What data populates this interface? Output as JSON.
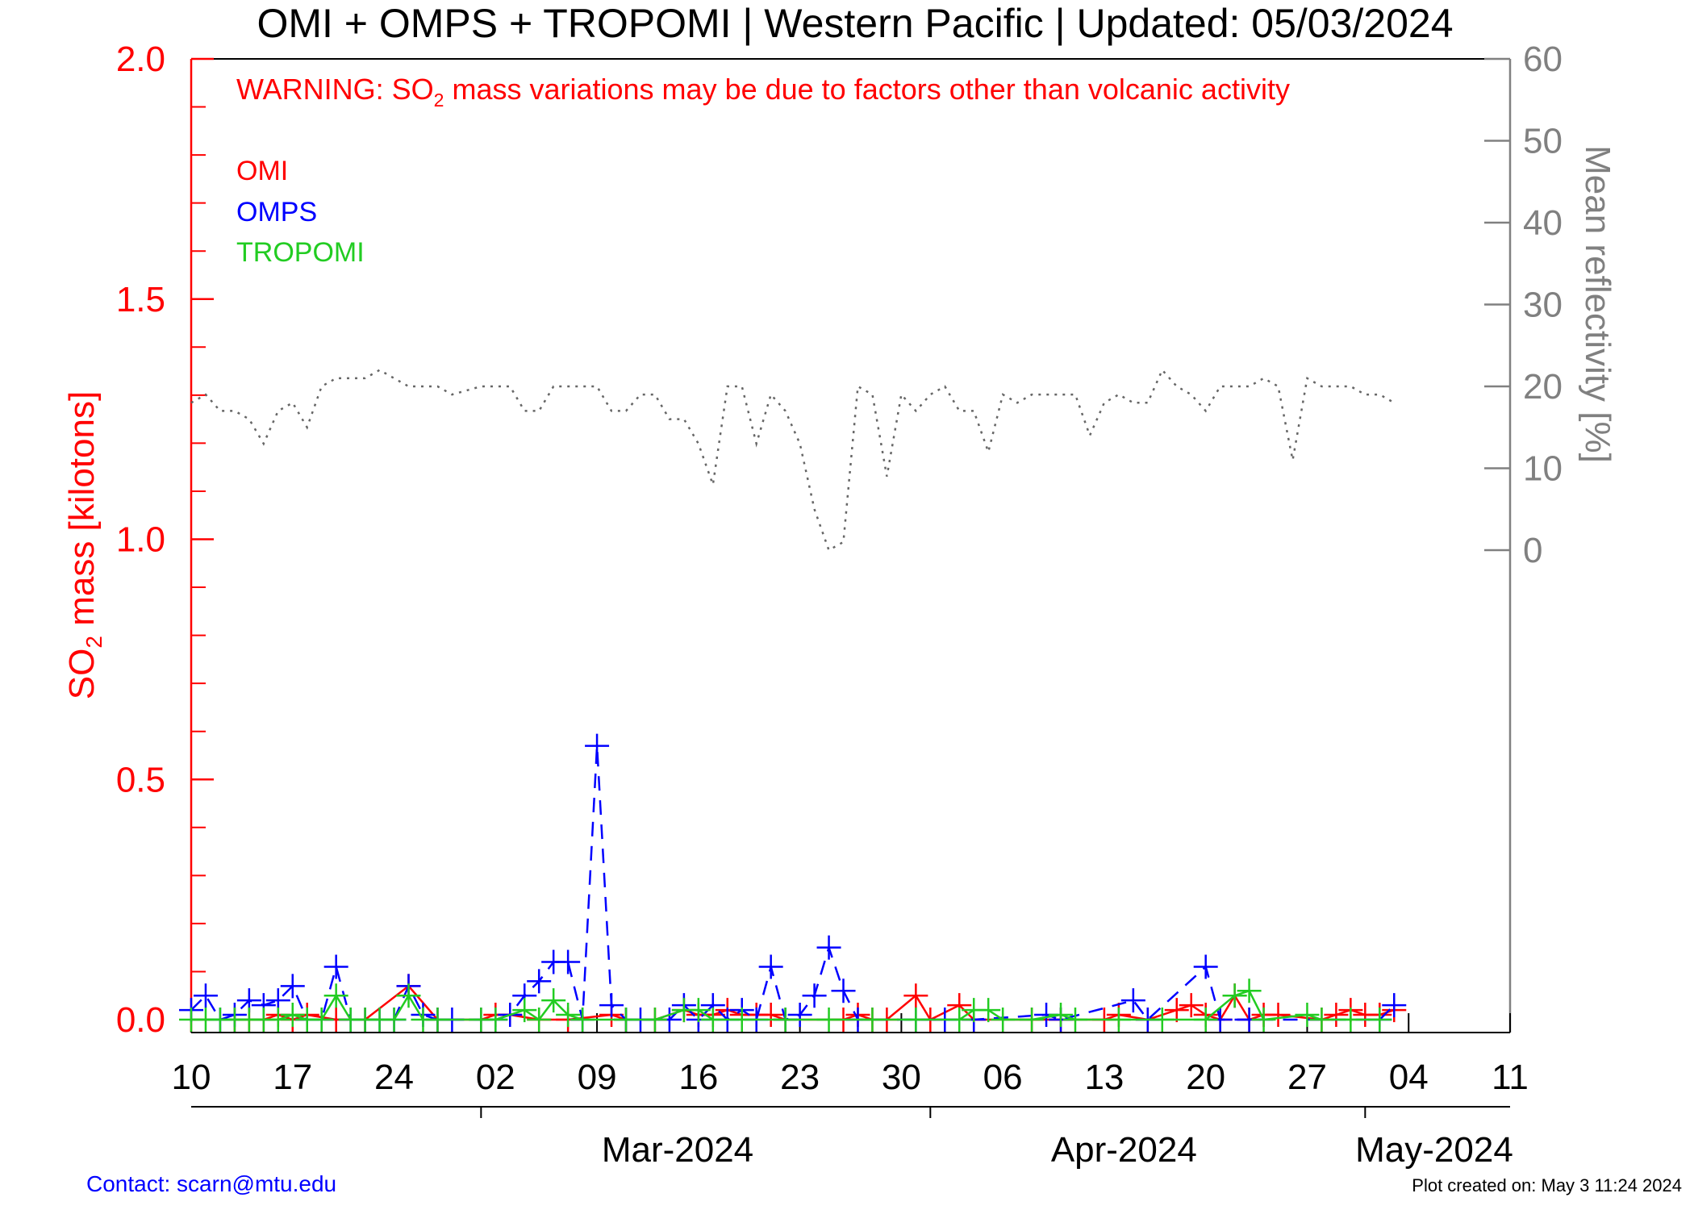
{
  "chart_data": {
    "type": "line",
    "title": "OMI + OMPS + TROPOMI | Western Pacific | Updated: 05/03/2024",
    "warning": {
      "prefix": "WARNING: SO",
      "subscript": "2",
      "suffix": " mass variations may be due to factors other than volcanic activity"
    },
    "ylabel_left": {
      "prefix": "SO",
      "subscript": "2",
      "suffix": " mass [kilotons]"
    },
    "ylabel_right": "Mean reflectivity [%]",
    "ylim_left": [
      0.0,
      2.0
    ],
    "ylim_right": [
      0,
      60
    ],
    "left_ticks": [
      "0.0",
      "0.5",
      "1.0",
      "1.5",
      "2.0"
    ],
    "right_ticks": [
      "0",
      "10",
      "20",
      "30",
      "40",
      "50",
      "60"
    ],
    "x_day_ticks": [
      "10",
      "17",
      "24",
      "02",
      "09",
      "16",
      "23",
      "30",
      "06",
      "13",
      "20",
      "27",
      "04",
      "11"
    ],
    "x_month_labels": [
      "Mar-2024",
      "Apr-2024",
      "May-2024"
    ],
    "x_start": "2024-02-10",
    "x_end": "2024-05-11",
    "legend_position": "top-left",
    "series": [
      {
        "name": "OMI",
        "color": "#ff0000",
        "dash": "solid",
        "points": [
          [
            "2024-02-13",
            0.0
          ],
          [
            "2024-02-14",
            0.0
          ],
          [
            "2024-02-15",
            0.0
          ],
          [
            "2024-02-16",
            0.01
          ],
          [
            "2024-02-17",
            0.0
          ],
          [
            "2024-02-18",
            0.01
          ],
          [
            "2024-02-20",
            0.0
          ],
          [
            "2024-02-22",
            0.0
          ],
          [
            "2024-02-25",
            0.07
          ],
          [
            "2024-02-27",
            0.0
          ],
          [
            "2024-03-01",
            0.0
          ],
          [
            "2024-03-02",
            0.01
          ],
          [
            "2024-03-03",
            0.01
          ],
          [
            "2024-03-05",
            0.0
          ],
          [
            "2024-03-07",
            0.0
          ],
          [
            "2024-03-10",
            0.01
          ],
          [
            "2024-03-11",
            0.0
          ],
          [
            "2024-03-13",
            0.0
          ],
          [
            "2024-03-15",
            0.02
          ],
          [
            "2024-03-16",
            0.01
          ],
          [
            "2024-03-17",
            0.01
          ],
          [
            "2024-03-18",
            0.02
          ],
          [
            "2024-03-19",
            0.01
          ],
          [
            "2024-03-20",
            0.01
          ],
          [
            "2024-03-21",
            0.01
          ],
          [
            "2024-03-22",
            0.0
          ],
          [
            "2024-03-26",
            0.0
          ],
          [
            "2024-03-27",
            0.01
          ],
          [
            "2024-03-28",
            0.0
          ],
          [
            "2024-03-29",
            0.0
          ],
          [
            "2024-03-31",
            0.05
          ],
          [
            "2024-04-01",
            0.0
          ],
          [
            "2024-04-03",
            0.03
          ],
          [
            "2024-04-04",
            0.0
          ],
          [
            "2024-04-08",
            0.0
          ],
          [
            "2024-04-10",
            0.0
          ],
          [
            "2024-04-13",
            0.0
          ],
          [
            "2024-04-14",
            0.01
          ],
          [
            "2024-04-16",
            0.0
          ],
          [
            "2024-04-18",
            0.02
          ],
          [
            "2024-04-19",
            0.03
          ],
          [
            "2024-04-20",
            0.01
          ],
          [
            "2024-04-21",
            0.0
          ],
          [
            "2024-04-22",
            0.05
          ],
          [
            "2024-04-23",
            0.0
          ],
          [
            "2024-04-24",
            0.01
          ],
          [
            "2024-04-25",
            0.01
          ],
          [
            "2024-04-28",
            0.0
          ],
          [
            "2024-04-29",
            0.01
          ],
          [
            "2024-04-30",
            0.02
          ],
          [
            "2024-05-01",
            0.01
          ],
          [
            "2024-05-02",
            0.01
          ],
          [
            "2024-05-03",
            0.02
          ]
        ]
      },
      {
        "name": "OMPS",
        "color": "#0000ff",
        "dash": "dashed",
        "points": [
          [
            "2024-02-10",
            0.02
          ],
          [
            "2024-02-11",
            0.05
          ],
          [
            "2024-02-12",
            0.0
          ],
          [
            "2024-02-13",
            0.01
          ],
          [
            "2024-02-14",
            0.04
          ],
          [
            "2024-02-15",
            0.03
          ],
          [
            "2024-02-16",
            0.04
          ],
          [
            "2024-02-17",
            0.07
          ],
          [
            "2024-02-18",
            0.0
          ],
          [
            "2024-02-19",
            0.0
          ],
          [
            "2024-02-20",
            0.11
          ],
          [
            "2024-02-21",
            0.0
          ],
          [
            "2024-02-22",
            0.0
          ],
          [
            "2024-02-23",
            0.0
          ],
          [
            "2024-02-24",
            0.0
          ],
          [
            "2024-02-25",
            0.07
          ],
          [
            "2024-02-26",
            0.01
          ],
          [
            "2024-02-27",
            0.0
          ],
          [
            "2024-02-28",
            0.0
          ],
          [
            "2024-03-01",
            0.0
          ],
          [
            "2024-03-02",
            0.0
          ],
          [
            "2024-03-03",
            0.01
          ],
          [
            "2024-03-04",
            0.05
          ],
          [
            "2024-03-05",
            0.08
          ],
          [
            "2024-03-06",
            0.12
          ],
          [
            "2024-03-07",
            0.12
          ],
          [
            "2024-03-08",
            0.0
          ],
          [
            "2024-03-09",
            0.57
          ],
          [
            "2024-03-10",
            0.03
          ],
          [
            "2024-03-11",
            0.0
          ],
          [
            "2024-03-12",
            0.0
          ],
          [
            "2024-03-14",
            0.0
          ],
          [
            "2024-03-15",
            0.03
          ],
          [
            "2024-03-16",
            0.0
          ],
          [
            "2024-03-17",
            0.03
          ],
          [
            "2024-03-18",
            0.0
          ],
          [
            "2024-03-19",
            0.02
          ],
          [
            "2024-03-20",
            0.0
          ],
          [
            "2024-03-21",
            0.11
          ],
          [
            "2024-03-22",
            0.0
          ],
          [
            "2024-03-23",
            0.01
          ],
          [
            "2024-03-24",
            0.05
          ],
          [
            "2024-03-25",
            0.15
          ],
          [
            "2024-03-26",
            0.06
          ],
          [
            "2024-03-27",
            0.0
          ],
          [
            "2024-03-31",
            0.0
          ],
          [
            "2024-04-02",
            0.0
          ],
          [
            "2024-04-04",
            0.0
          ],
          [
            "2024-04-09",
            0.01
          ],
          [
            "2024-04-10",
            0.0
          ],
          [
            "2024-04-15",
            0.04
          ],
          [
            "2024-04-16",
            0.0
          ],
          [
            "2024-04-20",
            0.11
          ],
          [
            "2024-04-21",
            0.0
          ],
          [
            "2024-04-23",
            0.0
          ],
          [
            "2024-05-02",
            0.0
          ],
          [
            "2024-05-03",
            0.03
          ]
        ]
      },
      {
        "name": "TROPOMI",
        "color": "#22cc22",
        "dash": "solid",
        "points": [
          [
            "2024-02-10",
            0.0
          ],
          [
            "2024-02-11",
            0.0
          ],
          [
            "2024-02-12",
            0.0
          ],
          [
            "2024-02-13",
            0.0
          ],
          [
            "2024-02-14",
            0.0
          ],
          [
            "2024-02-15",
            0.0
          ],
          [
            "2024-02-16",
            0.0
          ],
          [
            "2024-02-17",
            0.01
          ],
          [
            "2024-02-18",
            0.0
          ],
          [
            "2024-02-19",
            0.0
          ],
          [
            "2024-02-20",
            0.05
          ],
          [
            "2024-02-21",
            0.0
          ],
          [
            "2024-02-22",
            0.0
          ],
          [
            "2024-02-23",
            0.0
          ],
          [
            "2024-02-24",
            0.0
          ],
          [
            "2024-02-25",
            0.05
          ],
          [
            "2024-02-26",
            0.0
          ],
          [
            "2024-02-27",
            0.0
          ],
          [
            "2024-03-01",
            0.0
          ],
          [
            "2024-03-02",
            0.0
          ],
          [
            "2024-03-04",
            0.02
          ],
          [
            "2024-03-05",
            0.0
          ],
          [
            "2024-03-06",
            0.04
          ],
          [
            "2024-03-07",
            0.01
          ],
          [
            "2024-03-08",
            0.0
          ],
          [
            "2024-03-11",
            0.0
          ],
          [
            "2024-03-13",
            0.0
          ],
          [
            "2024-03-15",
            0.02
          ],
          [
            "2024-03-16",
            0.02
          ],
          [
            "2024-03-17",
            0.0
          ],
          [
            "2024-03-19",
            0.0
          ],
          [
            "2024-03-22",
            0.0
          ],
          [
            "2024-03-25",
            0.0
          ],
          [
            "2024-03-28",
            0.0
          ],
          [
            "2024-03-31",
            0.0
          ],
          [
            "2024-04-03",
            0.0
          ],
          [
            "2024-04-04",
            0.02
          ],
          [
            "2024-04-05",
            0.02
          ],
          [
            "2024-04-06",
            0.0
          ],
          [
            "2024-04-08",
            0.0
          ],
          [
            "2024-04-10",
            0.01
          ],
          [
            "2024-04-11",
            0.0
          ],
          [
            "2024-04-14",
            0.0
          ],
          [
            "2024-04-17",
            0.0
          ],
          [
            "2024-04-20",
            0.0
          ],
          [
            "2024-04-22",
            0.05
          ],
          [
            "2024-04-23",
            0.06
          ],
          [
            "2024-04-24",
            0.0
          ],
          [
            "2024-04-27",
            0.01
          ],
          [
            "2024-04-28",
            0.0
          ],
          [
            "2024-04-30",
            0.0
          ],
          [
            "2024-05-02",
            0.0
          ]
        ]
      },
      {
        "name": "Mean reflectivity",
        "color": "#666666",
        "dash": "dotted",
        "axis": "right",
        "points": [
          [
            "2024-02-10",
            18
          ],
          [
            "2024-02-11",
            19
          ],
          [
            "2024-02-12",
            17
          ],
          [
            "2024-02-13",
            17
          ],
          [
            "2024-02-14",
            16
          ],
          [
            "2024-02-15",
            13
          ],
          [
            "2024-02-16",
            17
          ],
          [
            "2024-02-17",
            18
          ],
          [
            "2024-02-18",
            15
          ],
          [
            "2024-02-19",
            20
          ],
          [
            "2024-02-20",
            21
          ],
          [
            "2024-02-21",
            21
          ],
          [
            "2024-02-22",
            21
          ],
          [
            "2024-02-23",
            22
          ],
          [
            "2024-02-24",
            21
          ],
          [
            "2024-02-25",
            20
          ],
          [
            "2024-02-26",
            20
          ],
          [
            "2024-02-27",
            20
          ],
          [
            "2024-02-28",
            19
          ],
          [
            "2024-03-01",
            20
          ],
          [
            "2024-03-02",
            20
          ],
          [
            "2024-03-03",
            20
          ],
          [
            "2024-03-04",
            17
          ],
          [
            "2024-03-05",
            17
          ],
          [
            "2024-03-06",
            20
          ],
          [
            "2024-03-07",
            20
          ],
          [
            "2024-03-08",
            20
          ],
          [
            "2024-03-09",
            20
          ],
          [
            "2024-03-10",
            17
          ],
          [
            "2024-03-11",
            17
          ],
          [
            "2024-03-12",
            19
          ],
          [
            "2024-03-13",
            19
          ],
          [
            "2024-03-14",
            16
          ],
          [
            "2024-03-15",
            16
          ],
          [
            "2024-03-16",
            13
          ],
          [
            "2024-03-17",
            8
          ],
          [
            "2024-03-18",
            20
          ],
          [
            "2024-03-19",
            20
          ],
          [
            "2024-03-20",
            13
          ],
          [
            "2024-03-21",
            19
          ],
          [
            "2024-03-22",
            17
          ],
          [
            "2024-03-23",
            13
          ],
          [
            "2024-03-24",
            5
          ],
          [
            "2024-03-25",
            0
          ],
          [
            "2024-03-26",
            1
          ],
          [
            "2024-03-27",
            20
          ],
          [
            "2024-03-28",
            19
          ],
          [
            "2024-03-29",
            9
          ],
          [
            "2024-03-30",
            19
          ],
          [
            "2024-03-31",
            17
          ],
          [
            "2024-04-01",
            19
          ],
          [
            "2024-04-02",
            20
          ],
          [
            "2024-04-03",
            17
          ],
          [
            "2024-04-04",
            17
          ],
          [
            "2024-04-05",
            12
          ],
          [
            "2024-04-06",
            19
          ],
          [
            "2024-04-07",
            18
          ],
          [
            "2024-04-08",
            19
          ],
          [
            "2024-04-09",
            19
          ],
          [
            "2024-04-10",
            19
          ],
          [
            "2024-04-11",
            19
          ],
          [
            "2024-04-12",
            14
          ],
          [
            "2024-04-13",
            18
          ],
          [
            "2024-04-14",
            19
          ],
          [
            "2024-04-15",
            18
          ],
          [
            "2024-04-16",
            18
          ],
          [
            "2024-04-17",
            22
          ],
          [
            "2024-04-18",
            20
          ],
          [
            "2024-04-19",
            19
          ],
          [
            "2024-04-20",
            17
          ],
          [
            "2024-04-21",
            20
          ],
          [
            "2024-04-22",
            20
          ],
          [
            "2024-04-23",
            20
          ],
          [
            "2024-04-24",
            21
          ],
          [
            "2024-04-25",
            20
          ],
          [
            "2024-04-26",
            11
          ],
          [
            "2024-04-27",
            21
          ],
          [
            "2024-04-28",
            20
          ],
          [
            "2024-04-29",
            20
          ],
          [
            "2024-04-30",
            20
          ],
          [
            "2024-05-01",
            19
          ],
          [
            "2024-05-02",
            19
          ],
          [
            "2024-05-03",
            18
          ]
        ]
      }
    ]
  },
  "footer": {
    "contact": "Contact: scarn@mtu.edu",
    "created": "Plot created on: May  3 11:24 2024"
  }
}
